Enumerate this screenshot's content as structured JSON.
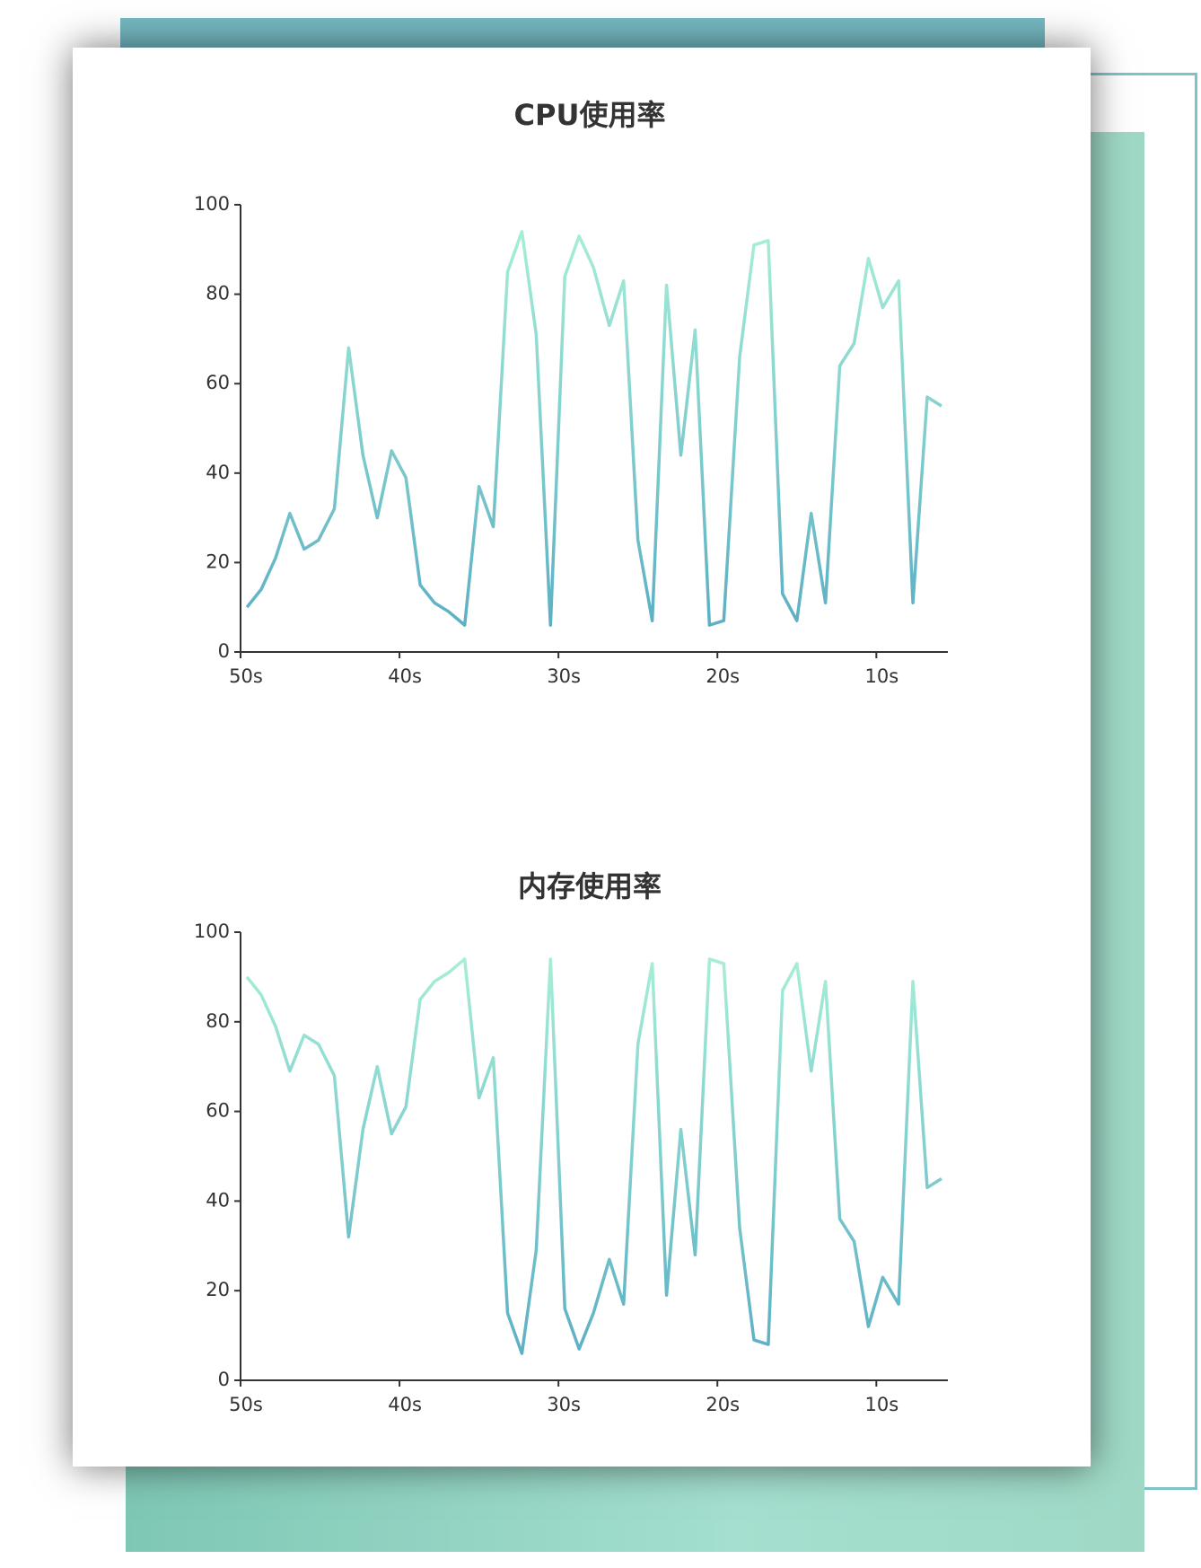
{
  "chart_data": [
    {
      "type": "line",
      "title": "CPU使用率",
      "x": [
        49.6,
        48.7,
        47.8,
        46.9,
        46.0,
        45.1,
        44.1,
        43.2,
        42.3,
        41.4,
        40.5,
        39.6,
        38.7,
        37.8,
        36.9,
        35.9,
        35.0,
        34.1,
        33.2,
        32.3,
        31.4,
        30.5,
        29.6,
        28.7,
        27.8,
        26.8,
        25.9,
        25.0,
        24.1,
        23.2,
        22.3,
        21.4,
        20.5,
        19.6,
        18.6,
        17.7,
        16.8,
        15.9,
        15.0,
        14.1,
        13.2,
        12.3,
        11.4,
        10.5,
        9.6,
        8.6,
        7.7,
        6.8,
        5.9
      ],
      "values": [
        10,
        14,
        21,
        31,
        23,
        25,
        32,
        68,
        44,
        30,
        45,
        39,
        15,
        11,
        9,
        6,
        37,
        28,
        85,
        94,
        71,
        6,
        84,
        93,
        86,
        73,
        83,
        25,
        7,
        82,
        44,
        72,
        6,
        7,
        66,
        91,
        92,
        13,
        7,
        31,
        11,
        64,
        69,
        88,
        77,
        83,
        11,
        57,
        55
      ],
      "gradient": {
        "low": "#58abc3",
        "high": "#aaf2d8"
      },
      "xlim": [
        50,
        5.5
      ],
      "xticks": [
        {
          "value": 50,
          "label": "50s"
        },
        {
          "value": 40,
          "label": "40s"
        },
        {
          "value": 30,
          "label": "30s"
        },
        {
          "value": 20,
          "label": "20s"
        },
        {
          "value": 10,
          "label": "10s"
        }
      ],
      "ylim": [
        0,
        100
      ],
      "yticks": [
        0,
        20,
        40,
        60,
        80,
        100
      ]
    },
    {
      "type": "line",
      "title": "内存使用率",
      "x": [
        49.6,
        48.7,
        47.8,
        46.9,
        46.0,
        45.1,
        44.1,
        43.2,
        42.3,
        41.4,
        40.5,
        39.6,
        38.7,
        37.8,
        36.9,
        35.9,
        35.0,
        34.1,
        33.2,
        32.3,
        31.4,
        30.5,
        29.6,
        28.7,
        27.8,
        26.8,
        25.9,
        25.0,
        24.1,
        23.2,
        22.3,
        21.4,
        20.5,
        19.6,
        18.6,
        17.7,
        16.8,
        15.9,
        15.0,
        14.1,
        13.2,
        12.3,
        11.4,
        10.5,
        9.6,
        8.6,
        7.7,
        6.8,
        5.9
      ],
      "values": [
        90,
        86,
        79,
        69,
        77,
        75,
        68,
        32,
        56,
        70,
        55,
        61,
        85,
        89,
        91,
        94,
        63,
        72,
        15,
        6,
        29,
        94,
        16,
        7,
        15,
        27,
        17,
        75,
        93,
        19,
        56,
        28,
        94,
        93,
        34,
        9,
        8,
        87,
        93,
        69,
        89,
        36,
        31,
        12,
        23,
        17,
        89,
        43,
        45
      ],
      "gradient": {
        "low": "#58abc3",
        "high": "#aaf2d8"
      },
      "xlim": [
        50,
        5.5
      ],
      "xticks": [
        {
          "value": 50,
          "label": "50s"
        },
        {
          "value": 40,
          "label": "40s"
        },
        {
          "value": 30,
          "label": "30s"
        },
        {
          "value": 20,
          "label": "20s"
        },
        {
          "value": 10,
          "label": "10s"
        }
      ],
      "ylim": [
        0,
        100
      ],
      "yticks": [
        0,
        20,
        40,
        60,
        80,
        100
      ]
    }
  ]
}
